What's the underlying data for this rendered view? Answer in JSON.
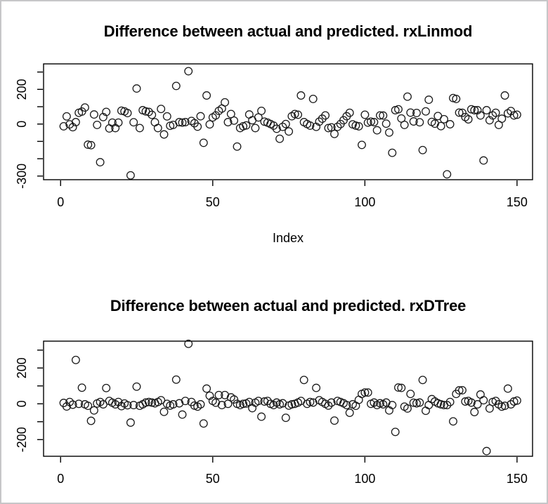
{
  "window": {
    "background": "#ffffff",
    "border_color": "#c6c6c8",
    "point_color": "#1a1a1a",
    "axis_color": "#000000"
  },
  "chart_data": [
    {
      "type": "scatter",
      "title": "Difference between actual and predicted. rxLinmod",
      "xlabel": "Index",
      "ylabel": "",
      "marker": "open-circle",
      "grid": false,
      "x_start_index": 1,
      "xlim": [
        -5.6,
        155.1
      ],
      "ylim": [
        -321,
        347
      ],
      "xticks": [
        {
          "v": 0,
          "l": "0"
        },
        {
          "v": 50,
          "l": "50"
        },
        {
          "v": 100,
          "l": "100"
        },
        {
          "v": 150,
          "l": "150"
        }
      ],
      "yticks": [
        {
          "v": 300,
          "l": ""
        },
        {
          "v": 200,
          "l": "200"
        },
        {
          "v": 100,
          "l": ""
        },
        {
          "v": 0,
          "l": "0"
        },
        {
          "v": -100,
          "l": ""
        },
        {
          "v": -200,
          "l": ""
        },
        {
          "v": -300,
          "l": "-300"
        }
      ],
      "values": [
        -13,
        44,
        -2,
        -18,
        11,
        65,
        72,
        95,
        -119,
        -122,
        55,
        -5,
        -220,
        40,
        70,
        -25,
        8,
        -23,
        8,
        77,
        73,
        63,
        -296,
        10,
        205,
        -23,
        80,
        73,
        70,
        53,
        10,
        -23,
        87,
        -60,
        44,
        -10,
        -5,
        220,
        11,
        8,
        11,
        305,
        18,
        5,
        -15,
        45,
        -108,
        165,
        -2,
        38,
        50,
        76,
        89,
        125,
        11,
        58,
        20,
        -130,
        -23,
        -13,
        -8,
        55,
        22,
        -23,
        38,
        76,
        14,
        8,
        0,
        -9,
        -27,
        -85,
        -16,
        0,
        -43,
        45,
        58,
        54,
        165,
        11,
        0,
        -9,
        145,
        -16,
        14,
        31,
        50,
        -23,
        -19,
        -57,
        -16,
        0,
        22,
        45,
        65,
        -2,
        -9,
        -13,
        -120,
        54,
        8,
        14,
        11,
        -36,
        50,
        49,
        2,
        -49,
        -166,
        80,
        85,
        32,
        -5,
        158,
        66,
        15,
        64,
        10,
        -150,
        73,
        140,
        12,
        2,
        46,
        -12,
        28,
        -290,
        -1,
        150,
        145,
        66,
        65,
        40,
        27,
        85,
        80,
        80,
        50,
        -210,
        80,
        22,
        50,
        65,
        -5,
        31,
        165,
        62,
        75,
        50,
        54
      ]
    },
    {
      "type": "scatter",
      "title": "Difference between actual and predicted. rxDTree",
      "xlabel": "",
      "ylabel": "",
      "marker": "open-circle",
      "grid": false,
      "x_start_index": 1,
      "xlim": [
        -5.6,
        155.1
      ],
      "ylim": [
        -293,
        350
      ],
      "xticks": [
        {
          "v": 0,
          "l": "0"
        },
        {
          "v": 50,
          "l": "50"
        },
        {
          "v": 100,
          "l": "100"
        },
        {
          "v": 150,
          "l": "150"
        }
      ],
      "yticks": [
        {
          "v": 300,
          "l": ""
        },
        {
          "v": 200,
          "l": "200"
        },
        {
          "v": 100,
          "l": ""
        },
        {
          "v": 0,
          "l": "0"
        },
        {
          "v": -100,
          "l": ""
        },
        {
          "v": -200,
          "l": "-200"
        }
      ],
      "values": [
        5,
        -15,
        10,
        -5,
        245,
        0,
        90,
        -3,
        -11,
        -95,
        -37,
        2,
        10,
        -3,
        88,
        16,
        6,
        -3,
        10,
        -13,
        2,
        -8,
        -105,
        -7,
        96,
        -11,
        -3,
        7,
        10,
        7,
        3,
        10,
        20,
        -45,
        0,
        -10,
        -3,
        135,
        3,
        -60,
        16,
        335,
        10,
        -10,
        -16,
        -3,
        -110,
        85,
        45,
        16,
        6,
        49,
        -7,
        49,
        0,
        36,
        24,
        0,
        -7,
        0,
        2,
        10,
        -24,
        6,
        16,
        -72,
        13,
        16,
        0,
        -7,
        7,
        -3,
        3,
        -78,
        -10,
        -3,
        0,
        7,
        16,
        133,
        0,
        10,
        7,
        89,
        20,
        10,
        0,
        -10,
        7,
        -94,
        16,
        10,
        3,
        -7,
        -50,
        -3,
        -11,
        22,
        55,
        63,
        63,
        0,
        7,
        -7,
        3,
        -3,
        7,
        -37,
        -7,
        -157,
        91,
        89,
        -16,
        -26,
        55,
        6,
        3,
        7,
        133,
        -39,
        -7,
        26,
        13,
        3,
        -3,
        -7,
        -7,
        10,
        -98,
        55,
        75,
        76,
        13,
        16,
        7,
        -46,
        -3,
        52,
        20,
        -264,
        -26,
        10,
        16,
        -3,
        -16,
        -11,
        85,
        -3,
        13,
        18
      ]
    }
  ]
}
